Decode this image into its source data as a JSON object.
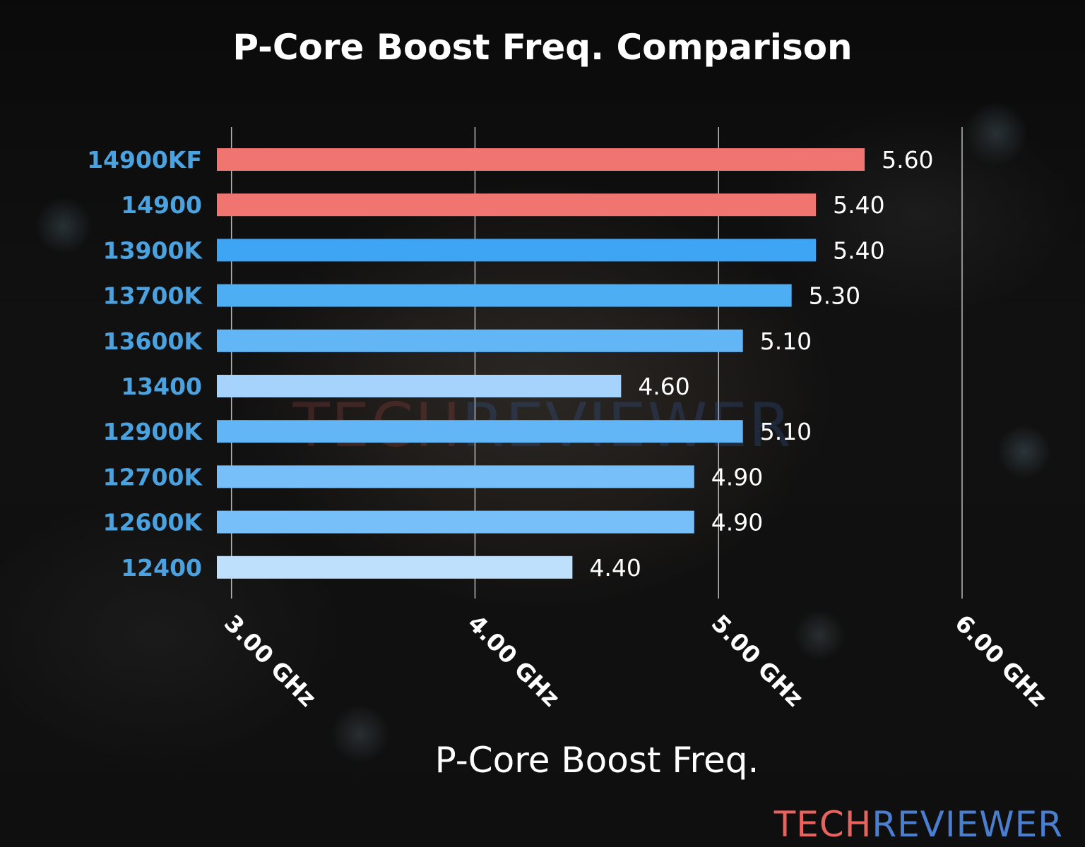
{
  "colors": {
    "background": "#171717",
    "category_label": "#4aa3e0",
    "bar_red": "#f07470",
    "bar_blue_dark": "#3ea4f4",
    "bar_blue_mid": "#4eaef4",
    "bar_blue_light": "#62b6f6",
    "bar_blue_lighter": "#76bff8",
    "bar_blue_pale": "#a6d3fb",
    "bar_blue_palest": "#bfe0fd",
    "logo_red": "#e8625e",
    "logo_blue": "#4a7fd0"
  },
  "watermark": {
    "part1": "TECH",
    "part2": "REVIEWER"
  },
  "logo": {
    "part1": "TECH",
    "part2": "REVIEWER"
  },
  "chart_data": {
    "type": "bar",
    "orientation": "horizontal",
    "title": "P-Core Boost Freq. Comparison",
    "xlabel": "P-Core Boost Freq.",
    "ylabel": "",
    "xlim": [
      2.94,
      6.0
    ],
    "x_ticks": [
      3.0,
      4.0,
      5.0,
      6.0
    ],
    "x_tick_labels": [
      "3.00 GHz",
      "4.00 GHz",
      "5.00 GHz",
      "6.00 GHz"
    ],
    "grid": "vertical",
    "categories": [
      "14900KF",
      "14900",
      "13900K",
      "13700K",
      "13600K",
      "13400",
      "12900K",
      "12700K",
      "12600K",
      "12400"
    ],
    "values": [
      5.6,
      5.4,
      5.4,
      5.3,
      5.1,
      4.6,
      5.1,
      4.9,
      4.9,
      4.4
    ],
    "value_labels": [
      "5.60",
      "5.40",
      "5.40",
      "5.30",
      "5.10",
      "4.60",
      "5.10",
      "4.90",
      "4.90",
      "4.40"
    ],
    "bar_colors": [
      "#f07470",
      "#f07470",
      "#3ea4f4",
      "#4eaef4",
      "#62b6f6",
      "#a6d3fb",
      "#62b6f6",
      "#76bff8",
      "#76bff8",
      "#bfe0fd"
    ]
  }
}
